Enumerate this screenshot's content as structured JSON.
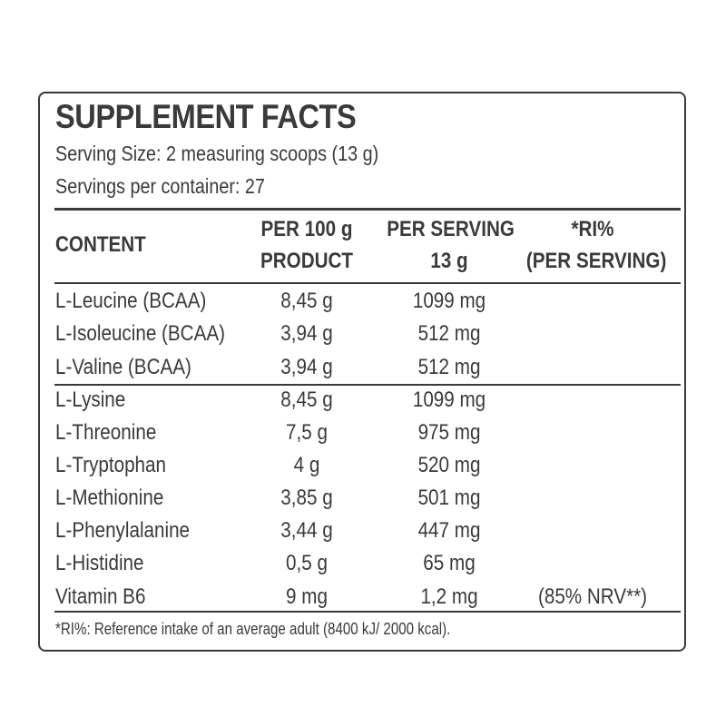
{
  "title": "SUPPLEMENT FACTS",
  "serving_size": "Serving Size: 2 measuring scoops (13 g)",
  "servings_per_container": "Servings per container: 27",
  "header": {
    "content": "CONTENT",
    "per100_line1": "PER 100 g",
    "per100_line2": "PRODUCT",
    "perserving_line1": "PER SERVING",
    "perserving_line2": "13 g",
    "ri_line1": "*RI%",
    "ri_line2": "(PER SERVING)"
  },
  "rows": [
    {
      "name": "L-Leucine (BCAA)",
      "per100": "8,45 g",
      "perserving": "1099 mg",
      "ri": ""
    },
    {
      "name": "L-Isoleucine (BCAA)",
      "per100": "3,94 g",
      "perserving": "512 mg",
      "ri": ""
    },
    {
      "name": "L-Valine (BCAA)",
      "per100": "3,94 g",
      "perserving": "512 mg",
      "ri": ""
    },
    {
      "name": "L-Lysine",
      "per100": "8,45 g",
      "perserving": "1099 mg",
      "ri": ""
    },
    {
      "name": "L-Threonine",
      "per100": "7,5 g",
      "perserving": "975 mg",
      "ri": ""
    },
    {
      "name": "L-Tryptophan",
      "per100": "4 g",
      "perserving": "520 mg",
      "ri": ""
    },
    {
      "name": "L-Methionine",
      "per100": "3,85 g",
      "perserving": "501 mg",
      "ri": ""
    },
    {
      "name": "L-Phenylalanine",
      "per100": "3,44 g",
      "perserving": "447 mg",
      "ri": ""
    },
    {
      "name": "L-Histidine",
      "per100": "0,5 g",
      "perserving": "65 mg",
      "ri": ""
    },
    {
      "name": "Vitamin B6",
      "per100": "9 mg",
      "perserving": "1,2 mg",
      "ri": "(85% NRV**)"
    }
  ],
  "footnote": "*RI%: Reference intake of an average adult (8400 kJ/ 2000 kcal)."
}
